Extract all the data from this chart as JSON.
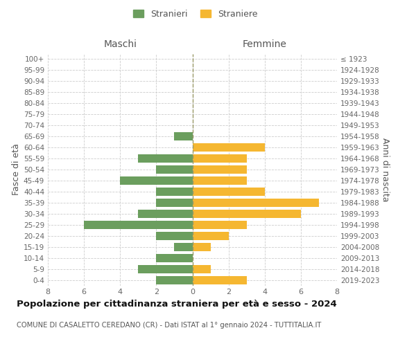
{
  "age_groups": [
    "100+",
    "95-99",
    "90-94",
    "85-89",
    "80-84",
    "75-79",
    "70-74",
    "65-69",
    "60-64",
    "55-59",
    "50-54",
    "45-49",
    "40-44",
    "35-39",
    "30-34",
    "25-29",
    "20-24",
    "15-19",
    "10-14",
    "5-9",
    "0-4"
  ],
  "birth_years": [
    "≤ 1923",
    "1924-1928",
    "1929-1933",
    "1934-1938",
    "1939-1943",
    "1944-1948",
    "1949-1953",
    "1954-1958",
    "1959-1963",
    "1964-1968",
    "1969-1973",
    "1974-1978",
    "1979-1983",
    "1984-1988",
    "1989-1993",
    "1994-1998",
    "1999-2003",
    "2004-2008",
    "2009-2013",
    "2014-2018",
    "2019-2023"
  ],
  "maschi": [
    0,
    0,
    0,
    0,
    0,
    0,
    0,
    1,
    0,
    3,
    2,
    4,
    2,
    2,
    3,
    6,
    2,
    1,
    2,
    3,
    2
  ],
  "femmine": [
    0,
    0,
    0,
    0,
    0,
    0,
    0,
    0,
    4,
    3,
    3,
    3,
    4,
    7,
    6,
    3,
    2,
    1,
    0,
    1,
    3
  ],
  "color_maschi": "#6b9e5e",
  "color_femmine": "#f5b731",
  "title": "Popolazione per cittadinanza straniera per età e sesso - 2024",
  "subtitle": "COMUNE DI CASALETTO CEREDANO (CR) - Dati ISTAT al 1° gennaio 2024 - TUTTITALIA.IT",
  "xlabel_left": "Maschi",
  "xlabel_right": "Femmine",
  "ylabel_left": "Fasce di età",
  "ylabel_right": "Anni di nascita",
  "xlim": 8,
  "legend_maschi": "Stranieri",
  "legend_femmine": "Straniere",
  "bg_color": "#ffffff",
  "grid_color": "#cccccc",
  "bar_height": 0.75,
  "center_line_color": "#999966"
}
